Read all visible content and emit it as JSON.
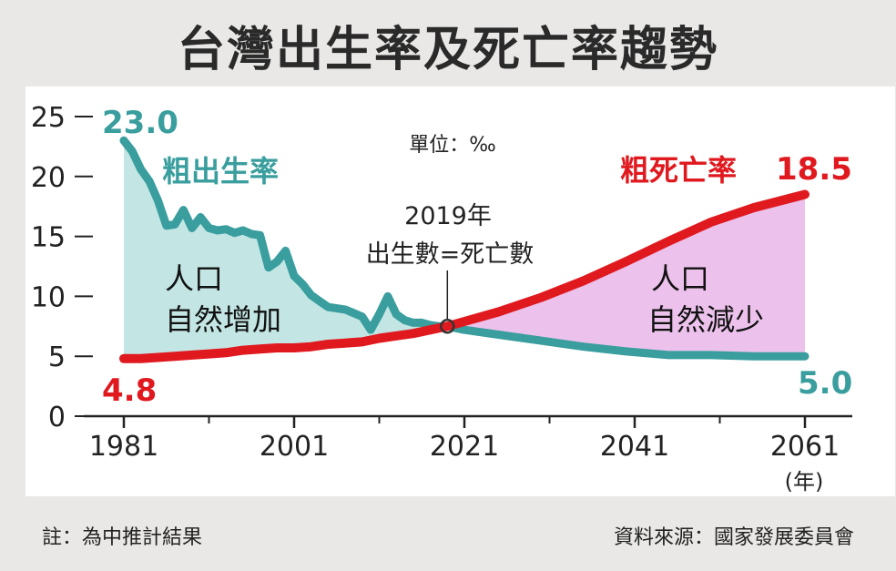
{
  "title": "台灣出生率及死亡率趨勢",
  "footer": {
    "note": "註：為中推計結果",
    "source": "資料來源：國家發展委員會"
  },
  "colors": {
    "birth": "#3a9e9e",
    "death": "#e0191f",
    "increase_fill": "#c3e6e4",
    "decrease_fill": "#ecc2ec",
    "title": "#2a2a2a"
  },
  "chart_data": {
    "type": "line",
    "unit_label": "單位：‰",
    "x_unit_label": "(年)",
    "ylim": [
      0,
      25
    ],
    "xlim": [
      1981,
      2061
    ],
    "y_ticks": [
      0,
      5,
      10,
      15,
      20,
      25
    ],
    "x_ticks": [
      1981,
      2001,
      2021,
      2041,
      2061
    ],
    "series": [
      {
        "name": "粗出生率",
        "color": "#3a9e9e",
        "start_label": "23.0",
        "end_label": "5.0",
        "points": [
          [
            1981,
            23.0
          ],
          [
            1982,
            22.1
          ],
          [
            1983,
            20.6
          ],
          [
            1984,
            19.6
          ],
          [
            1985,
            18.0
          ],
          [
            1986,
            15.9
          ],
          [
            1987,
            16.0
          ],
          [
            1988,
            17.2
          ],
          [
            1989,
            15.7
          ],
          [
            1990,
            16.6
          ],
          [
            1991,
            15.7
          ],
          [
            1992,
            15.5
          ],
          [
            1993,
            15.6
          ],
          [
            1994,
            15.3
          ],
          [
            1995,
            15.5
          ],
          [
            1996,
            15.2
          ],
          [
            1997,
            15.1
          ],
          [
            1998,
            12.4
          ],
          [
            1999,
            12.9
          ],
          [
            2000,
            13.8
          ],
          [
            2001,
            11.7
          ],
          [
            2002,
            11.0
          ],
          [
            2003,
            10.1
          ],
          [
            2004,
            9.6
          ],
          [
            2005,
            9.1
          ],
          [
            2006,
            9.0
          ],
          [
            2007,
            8.9
          ],
          [
            2008,
            8.6
          ],
          [
            2009,
            8.3
          ],
          [
            2010,
            7.2
          ],
          [
            2011,
            8.5
          ],
          [
            2012,
            10.0
          ],
          [
            2013,
            8.5
          ],
          [
            2014,
            8.0
          ],
          [
            2015,
            7.8
          ],
          [
            2016,
            7.8
          ],
          [
            2017,
            7.6
          ],
          [
            2018,
            7.5
          ],
          [
            2019,
            7.5
          ],
          [
            2021,
            7.2
          ],
          [
            2025,
            6.8
          ],
          [
            2030,
            6.3
          ],
          [
            2035,
            5.8
          ],
          [
            2040,
            5.4
          ],
          [
            2045,
            5.1
          ],
          [
            2050,
            5.1
          ],
          [
            2055,
            5.0
          ],
          [
            2061,
            5.0
          ]
        ]
      },
      {
        "name": "粗死亡率",
        "color": "#e0191f",
        "start_label": "4.8",
        "end_label": "18.5",
        "points": [
          [
            1981,
            4.8
          ],
          [
            1983,
            4.8
          ],
          [
            1985,
            4.9
          ],
          [
            1987,
            5.0
          ],
          [
            1989,
            5.1
          ],
          [
            1991,
            5.2
          ],
          [
            1993,
            5.3
          ],
          [
            1995,
            5.5
          ],
          [
            1997,
            5.6
          ],
          [
            1999,
            5.7
          ],
          [
            2001,
            5.7
          ],
          [
            2003,
            5.8
          ],
          [
            2005,
            6.0
          ],
          [
            2007,
            6.1
          ],
          [
            2009,
            6.2
          ],
          [
            2011,
            6.5
          ],
          [
            2013,
            6.7
          ],
          [
            2015,
            6.9
          ],
          [
            2017,
            7.2
          ],
          [
            2019,
            7.5
          ],
          [
            2021,
            7.9
          ],
          [
            2025,
            8.7
          ],
          [
            2030,
            9.9
          ],
          [
            2035,
            11.3
          ],
          [
            2040,
            12.9
          ],
          [
            2045,
            14.6
          ],
          [
            2050,
            16.2
          ],
          [
            2055,
            17.4
          ],
          [
            2061,
            18.5
          ]
        ]
      }
    ],
    "crossover": {
      "x": 2019,
      "y": 7.5,
      "label_year": "2019年",
      "label_text": "出生數=死亡數"
    },
    "regions": [
      {
        "line1": "人口",
        "line2": "自然增加"
      },
      {
        "line1": "人口",
        "line2": "自然減少"
      }
    ]
  }
}
